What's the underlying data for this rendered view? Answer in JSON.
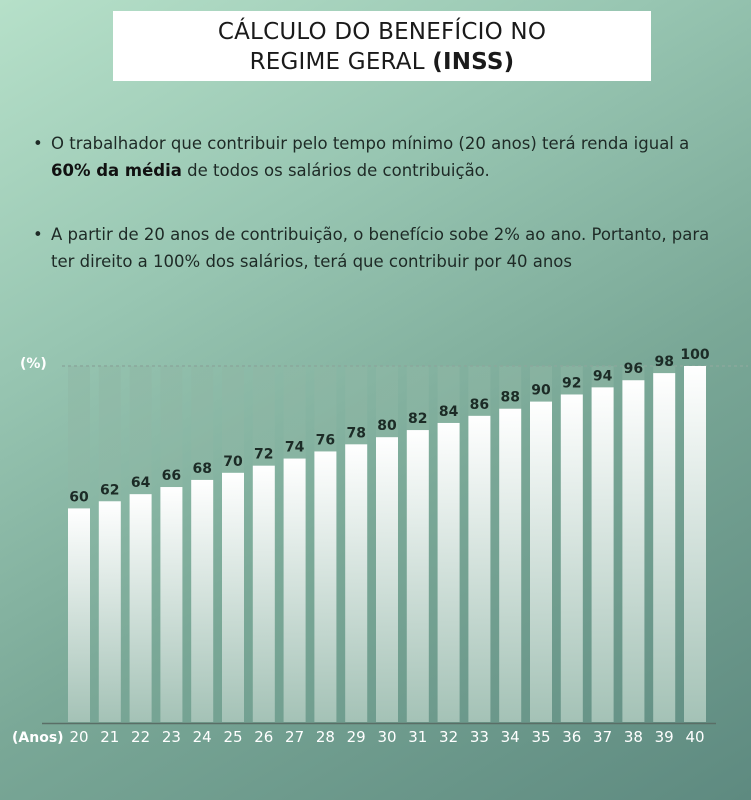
{
  "title": {
    "line1": "CÁLCULO DO BENEFÍCIO NO",
    "line2_prefix": "REGIME GERAL ",
    "line2_bold": "(INSS)"
  },
  "bullets": {
    "dot": "•",
    "b1_part1": "O trabalhador que contribuir pelo tempo mínimo  (20 anos) terá renda igual a ",
    "b1_bold": "60% da média",
    "b1_part2": " de todos os salários de contribuição.",
    "b2": "A partir de 20 anos de contribuição, o benefício sobe 2% ao ano. Portanto, para ter direito a 100% dos salários, terá que contribuir por 40 anos"
  },
  "colors": {
    "bar_top": "#ffffff",
    "bar_bottom": "#a4c2b6",
    "track": "#8fb7a5",
    "dashed_line": "#8aa89c",
    "axis_line": "#5a6e66"
  },
  "chart_data": {
    "type": "bar",
    "title": "",
    "xlabel": "(Anos)",
    "ylabel": "(%)",
    "categories": [
      "20",
      "21",
      "22",
      "23",
      "24",
      "25",
      "26",
      "27",
      "28",
      "29",
      "30",
      "31",
      "32",
      "33",
      "34",
      "35",
      "36",
      "37",
      "38",
      "39",
      "40"
    ],
    "values": [
      60,
      62,
      64,
      66,
      68,
      70,
      72,
      74,
      76,
      78,
      80,
      82,
      84,
      86,
      88,
      90,
      92,
      94,
      96,
      98,
      100
    ],
    "ylim": [
      0,
      100
    ],
    "reference_line": 100,
    "grid": false
  }
}
